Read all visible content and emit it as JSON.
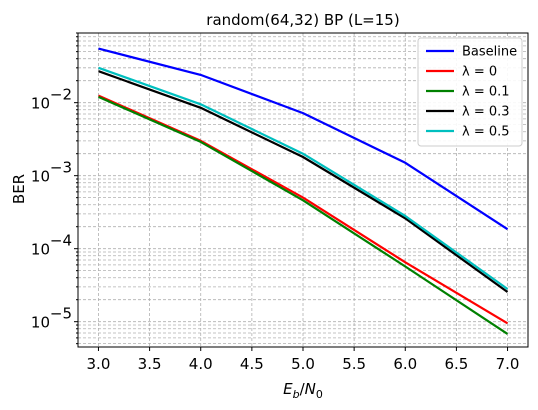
{
  "chart_data": {
    "type": "line",
    "title": "random(64,32) BP (L=15)",
    "xlabel": "E_b/N_0",
    "ylabel": "BER",
    "yscale": "log",
    "grid": "major and minor, dashed",
    "legend_position": "top-right",
    "x": [
      3.0,
      4.0,
      5.0,
      6.0,
      7.0
    ],
    "xlim": [
      2.8,
      7.2
    ],
    "ylim": [
      4.5e-06,
      0.09
    ],
    "xticks": [
      "3.0",
      "3.5",
      "4.0",
      "4.5",
      "5.0",
      "5.5",
      "6.0",
      "6.5",
      "7.0"
    ],
    "yticks": [
      {
        "value": 1e-05,
        "base": "10",
        "exp": "−5"
      },
      {
        "value": 0.0001,
        "base": "10",
        "exp": "−4"
      },
      {
        "value": 0.001,
        "base": "10",
        "exp": "−3"
      },
      {
        "value": 0.01,
        "base": "10",
        "exp": "−2"
      }
    ],
    "series": [
      {
        "name": "Baseline",
        "color": "#0000ff",
        "values": [
          0.055,
          0.024,
          0.0072,
          0.0015,
          0.000185
        ]
      },
      {
        "name": "λ = 0",
        "color": "#ff0000",
        "values": [
          0.0125,
          0.003,
          0.0005,
          6.5e-05,
          9.5e-06
        ]
      },
      {
        "name": "λ = 0.1",
        "color": "#008000",
        "values": [
          0.012,
          0.0029,
          0.00046,
          5.7e-05,
          6.8e-06
        ]
      },
      {
        "name": "λ = 0.3",
        "color": "#000000",
        "values": [
          0.027,
          0.0085,
          0.0018,
          0.00026,
          2.55e-05
        ]
      },
      {
        "name": "λ = 0.5",
        "color": "#00bfbf",
        "values": [
          0.03,
          0.0095,
          0.002,
          0.00028,
          2.8e-05
        ]
      }
    ]
  }
}
